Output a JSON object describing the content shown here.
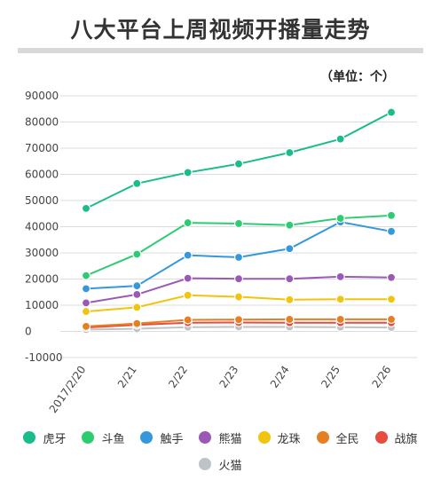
{
  "title": "八大平台上周视频开播量走势",
  "unit_label": "（单位：个）",
  "chart_data": {
    "type": "line",
    "x": [
      "2017/2/20",
      "2/21",
      "2/22",
      "2/23",
      "2/24",
      "2/25",
      "2/26"
    ],
    "ylim": [
      -10000,
      90000
    ],
    "yticks": [
      90000,
      80000,
      70000,
      60000,
      50000,
      40000,
      30000,
      20000,
      10000,
      0,
      -10000
    ],
    "grid": true,
    "legend_position": "bottom",
    "series": [
      {
        "name": "虎牙",
        "color": "#1abc8c",
        "values": [
          47000,
          56500,
          60700,
          64000,
          68300,
          73500,
          83700
        ]
      },
      {
        "name": "斗鱼",
        "color": "#2ecc71",
        "values": [
          21300,
          29500,
          41500,
          41200,
          40600,
          43200,
          44300
        ]
      },
      {
        "name": "触手",
        "color": "#3498db",
        "values": [
          16300,
          17400,
          29100,
          28300,
          31600,
          41800,
          38200
        ]
      },
      {
        "name": "熊猫",
        "color": "#9b59b6",
        "values": [
          10900,
          14100,
          20300,
          20100,
          20100,
          20900,
          20600
        ]
      },
      {
        "name": "龙珠",
        "color": "#f1c40f",
        "values": [
          7600,
          9200,
          13800,
          13200,
          12100,
          12300,
          12300
        ]
      },
      {
        "name": "全民",
        "color": "#e67e22",
        "values": [
          1900,
          3000,
          4400,
          4500,
          4600,
          4600,
          4600
        ]
      },
      {
        "name": "战旗",
        "color": "#e74c3c",
        "values": [
          1500,
          2500,
          3300,
          3400,
          3300,
          3300,
          3300
        ]
      },
      {
        "name": "火猫",
        "color": "#bdc3c7",
        "values": [
          700,
          1000,
          1600,
          1700,
          1700,
          1600,
          1500
        ]
      }
    ]
  }
}
